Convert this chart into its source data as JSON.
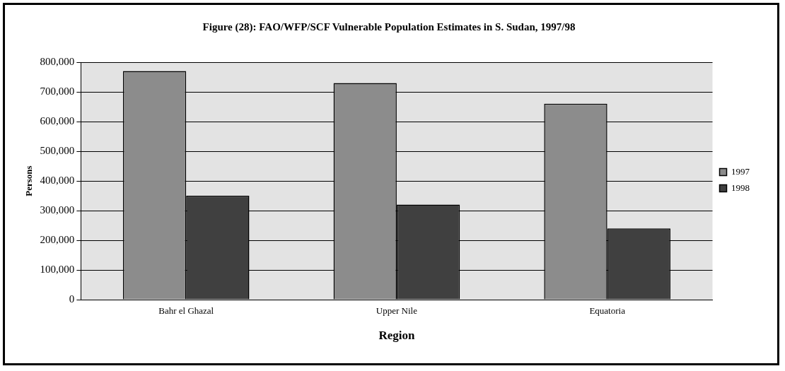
{
  "chart_data": {
    "type": "bar",
    "title": "Figure (28): FAO/WFP/SCF Vulnerable Population Estimates in S. Sudan, 1997/98",
    "xlabel": "Region",
    "ylabel": "Persons",
    "categories": [
      "Bahr el Ghazal",
      "Upper Nile",
      "Equatoria"
    ],
    "series": [
      {
        "name": "1997",
        "color": "#8c8c8c",
        "values": [
          770000,
          730000,
          660000
        ]
      },
      {
        "name": "1998",
        "color": "#404040",
        "values": [
          350000,
          320000,
          240000
        ]
      }
    ],
    "ylim": [
      0,
      800000
    ],
    "yticks": [
      0,
      {
        "value": 100000,
        "label": "100,000"
      },
      {
        "value": 200000,
        "label": "200,000"
      },
      {
        "value": 300000,
        "label": "300,000"
      },
      {
        "value": 400000,
        "label": "400,000"
      },
      {
        "value": 500000,
        "label": "500,000"
      },
      {
        "value": 600000,
        "label": "600,000"
      },
      {
        "value": 700000,
        "label": "700,000"
      },
      {
        "value": 800000,
        "label": "800,000"
      }
    ],
    "grid": "y",
    "legend": "right"
  }
}
